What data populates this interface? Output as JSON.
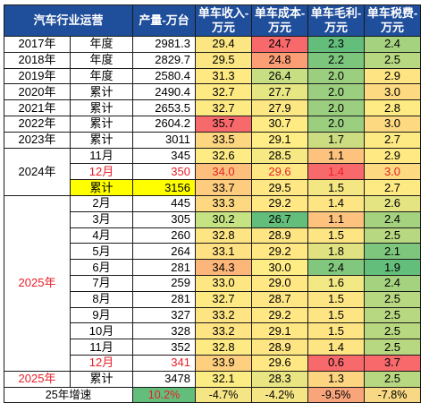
{
  "headers": {
    "category": "汽车行业运营",
    "output": "产量-万台",
    "revenue": "单车收入-万元",
    "cost": "单车成本-万元",
    "margin": "单车毛利-万元",
    "tax": "单车税费-万元"
  },
  "rows": [
    {
      "group": "2017年",
      "period": "年度",
      "output": "2981.3",
      "revenue": "29.4",
      "cost": "24.7",
      "margin": "2.3",
      "tax": "2.4"
    },
    {
      "group": "2018年",
      "period": "年度",
      "output": "2829.7",
      "revenue": "29.5",
      "cost": "24.8",
      "margin": "2.2",
      "tax": "2.5"
    },
    {
      "group": "2019年",
      "period": "年度",
      "output": "2580.4",
      "revenue": "31.3",
      "cost": "26.4",
      "margin": "2.0",
      "tax": "2.9"
    },
    {
      "group": "2020年",
      "period": "累计",
      "output": "2490.4",
      "revenue": "32.7",
      "cost": "27.7",
      "margin": "2.0",
      "tax": "3.0"
    },
    {
      "group": "2021年",
      "period": "累计",
      "output": "2653.5",
      "revenue": "32.7",
      "cost": "27.9",
      "margin": "2.0",
      "tax": "2.8"
    },
    {
      "group": "2022年",
      "period": "累计",
      "output": "2604.2",
      "revenue": "35.7",
      "cost": "30.7",
      "margin": "2.0",
      "tax": "3.0"
    },
    {
      "group": "2023年",
      "period": "累计",
      "output": "3011",
      "revenue": "33.5",
      "cost": "29.1",
      "margin": "1.7",
      "tax": "2.7"
    },
    {
      "group": "2024年",
      "period": "11月",
      "output": "345",
      "revenue": "32.6",
      "cost": "28.5",
      "margin": "1.1",
      "tax": "2.9"
    },
    {
      "group": "",
      "period": "12月",
      "output": "350",
      "revenue": "34.0",
      "cost": "29.6",
      "margin": "1.4",
      "tax": "3.0"
    },
    {
      "group": "",
      "period": "累计",
      "output": "3156",
      "revenue": "33.7",
      "cost": "29.5",
      "margin": "1.5",
      "tax": "2.7"
    },
    {
      "group": "2025年",
      "period": "2月",
      "output": "445",
      "revenue": "33.3",
      "cost": "29.2",
      "margin": "1.4",
      "tax": "2.6"
    },
    {
      "group": "",
      "period": "3月",
      "output": "305",
      "revenue": "30.2",
      "cost": "26.7",
      "margin": "1.1",
      "tax": "2.4"
    },
    {
      "group": "",
      "period": "4月",
      "output": "260",
      "revenue": "32.8",
      "cost": "28.9",
      "margin": "1.5",
      "tax": "2.5"
    },
    {
      "group": "",
      "period": "5月",
      "output": "264",
      "revenue": "33.1",
      "cost": "29.2",
      "margin": "1.8",
      "tax": "2.1"
    },
    {
      "group": "",
      "period": "6月",
      "output": "281",
      "revenue": "34.3",
      "cost": "30.0",
      "margin": "2.4",
      "tax": "1.9"
    },
    {
      "group": "",
      "period": "7月",
      "output": "259",
      "revenue": "33.0",
      "cost": "29.0",
      "margin": "1.6",
      "tax": "2.4"
    },
    {
      "group": "",
      "period": "8月",
      "output": "281",
      "revenue": "32.7",
      "cost": "28.7",
      "margin": "1.5",
      "tax": "2.5"
    },
    {
      "group": "",
      "period": "9月",
      "output": "327",
      "revenue": "33.2",
      "cost": "29.2",
      "margin": "1.5",
      "tax": "2.5"
    },
    {
      "group": "",
      "period": "10月",
      "output": "328",
      "revenue": "33.2",
      "cost": "29.1",
      "margin": "1.5",
      "tax": "2.5"
    },
    {
      "group": "",
      "period": "11月",
      "output": "352",
      "revenue": "32.8",
      "cost": "28.9",
      "margin": "1.4",
      "tax": "2.5"
    },
    {
      "group": "",
      "period": "12月",
      "output": "341",
      "revenue": "33.9",
      "cost": "29.6",
      "margin": "0.6",
      "tax": "3.7"
    },
    {
      "group": "2025年",
      "period": "累计",
      "output": "3478",
      "revenue": "32.1",
      "cost": "28.3",
      "margin": "1.3",
      "tax": "2.5"
    }
  ],
  "growth": {
    "label": "25年增速",
    "output": "10.2%",
    "revenue": "-4.7%",
    "cost": "-4.2%",
    "margin": "-9.5%",
    "tax": "-7.8%"
  },
  "colors": {
    "header_bg": "#1f4e9a",
    "red_text": "#e8202a",
    "highlight_yellow": "#ffff00",
    "growth_output_green": "#63be7b",
    "growth_revenue_yellow": "#f6e584",
    "growth_cost_yellow": "#f6e584",
    "growth_margin_red": "#f8a57c",
    "growth_tax_yellow": "#f8d884",
    "revenue_cells": [
      "#fbe683",
      "#fbe683",
      "#fee983",
      "#feea83",
      "#feea83",
      "#f8696b",
      "#fdd680",
      "#feeb84",
      "#fdc07c",
      "#fdcc7e",
      "#fdd880",
      "#c5e383",
      "#fee583",
      "#fee182",
      "#fdb67a",
      "#fee683",
      "#feea83",
      "#fee483",
      "#fee483",
      "#feea83",
      "#fdcf7f",
      "#fcec84"
    ],
    "cost_cells": [
      "#f8696b",
      "#fb9d75",
      "#c7de82",
      "#e6e683",
      "#fce883",
      "#ffeb84",
      "#ffed85",
      "#f6e984",
      "#ffe884",
      "#ffe884",
      "#ffe884",
      "#63be7b",
      "#fde583",
      "#ffe884",
      "#feec84",
      "#ffe884",
      "#fde683",
      "#ffe884",
      "#ffe884",
      "#fde583",
      "#ffe884",
      "#e9e583"
    ],
    "margin_cells": [
      "#63be7b",
      "#7cc57d",
      "#9bcf7f",
      "#9bcf7f",
      "#9bcf7f",
      "#9bcf7f",
      "#cbdc81",
      "#fdc27d",
      "#f8696b",
      "#f4e683",
      "#fee583",
      "#fdc27d",
      "#fee583",
      "#e0e282",
      "#81c77d",
      "#f2e884",
      "#fee583",
      "#fee583",
      "#fee583",
      "#fee583",
      "#f8696b",
      "#fdd580"
    ],
    "tax_cells": [
      "#a5d27f",
      "#b7d780",
      "#fee482",
      "#fdda81",
      "#feeb84",
      "#fdda81",
      "#feea83",
      "#fee983",
      "#fdda81",
      "#feea83",
      "#e5e483",
      "#a5d27f",
      "#b7d780",
      "#7ec67d",
      "#63be7b",
      "#a5d27f",
      "#b7d780",
      "#b7d780",
      "#b7d780",
      "#b7d780",
      "#f8696b",
      "#b7d780"
    ]
  }
}
